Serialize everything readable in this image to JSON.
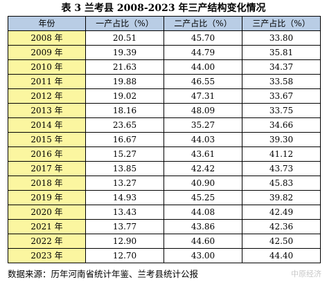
{
  "title": "表 3 兰考县 2008-2023 年三产结构变化情况",
  "columns": [
    "年份",
    "一产占比（%）",
    "二产占比（%）",
    "三产占比（%）"
  ],
  "rows": [
    [
      "2008 年",
      "20.51",
      "45.70",
      "33.80"
    ],
    [
      "2009 年",
      "19.39",
      "44.79",
      "35.81"
    ],
    [
      "2010 年",
      "21.63",
      "44.00",
      "34.37"
    ],
    [
      "2011 年",
      "19.88",
      "46.55",
      "33.58"
    ],
    [
      "2012 年",
      "19.02",
      "47.31",
      "33.67"
    ],
    [
      "2013 年",
      "18.16",
      "48.09",
      "33.75"
    ],
    [
      "2014 年",
      "23.65",
      "35.27",
      "34.66"
    ],
    [
      "2015 年",
      "16.67",
      "44.03",
      "39.30"
    ],
    [
      "2016 年",
      "15.27",
      "43.61",
      "41.12"
    ],
    [
      "2017 年",
      "13.85",
      "42.42",
      "43.73"
    ],
    [
      "2018 年",
      "13.27",
      "40.90",
      "45.83"
    ],
    [
      "2019 年",
      "14.93",
      "45.25",
      "39.82"
    ],
    [
      "2020 年",
      "13.43",
      "44.08",
      "42.49"
    ],
    [
      "2021 年",
      "13.77",
      "43.86",
      "42.36"
    ],
    [
      "2022 年",
      "12.90",
      "44.60",
      "42.50"
    ],
    [
      "2023 年",
      "12.70",
      "43.00",
      "44.40"
    ]
  ],
  "source": "数据来源：历年河南省统计年鉴、兰考县统计公报",
  "watermark": "中原经济",
  "colors": {
    "header_bg": "#b9cde5",
    "year_bg": "#fbf6a0"
  }
}
